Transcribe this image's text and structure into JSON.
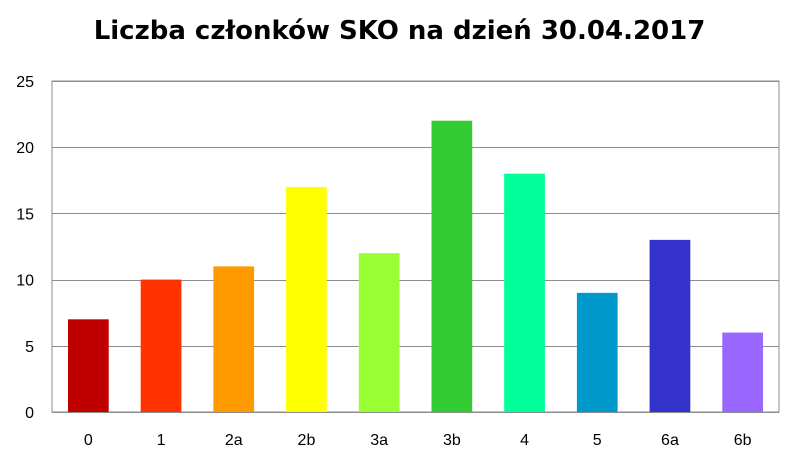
{
  "chart_data": {
    "type": "bar",
    "title": "Liczba członków SKO na dzień 30.04.2017",
    "xlabel": "",
    "ylabel": "",
    "categories": [
      "0",
      "1",
      "2a",
      "2b",
      "3a",
      "3b",
      "4",
      "5",
      "6a",
      "6b"
    ],
    "values": [
      7,
      10,
      11,
      17,
      12,
      22,
      18,
      9,
      13,
      6
    ],
    "colors": [
      "#C00000",
      "#FF3300",
      "#FF9900",
      "#FFFF00",
      "#99FF33",
      "#33CC33",
      "#00FF99",
      "#0099CC",
      "#3333CC",
      "#9966FF"
    ],
    "ylim": [
      0,
      25
    ],
    "yticks": [
      0,
      5,
      10,
      15,
      20,
      25
    ],
    "grid": true,
    "legend": "none"
  }
}
